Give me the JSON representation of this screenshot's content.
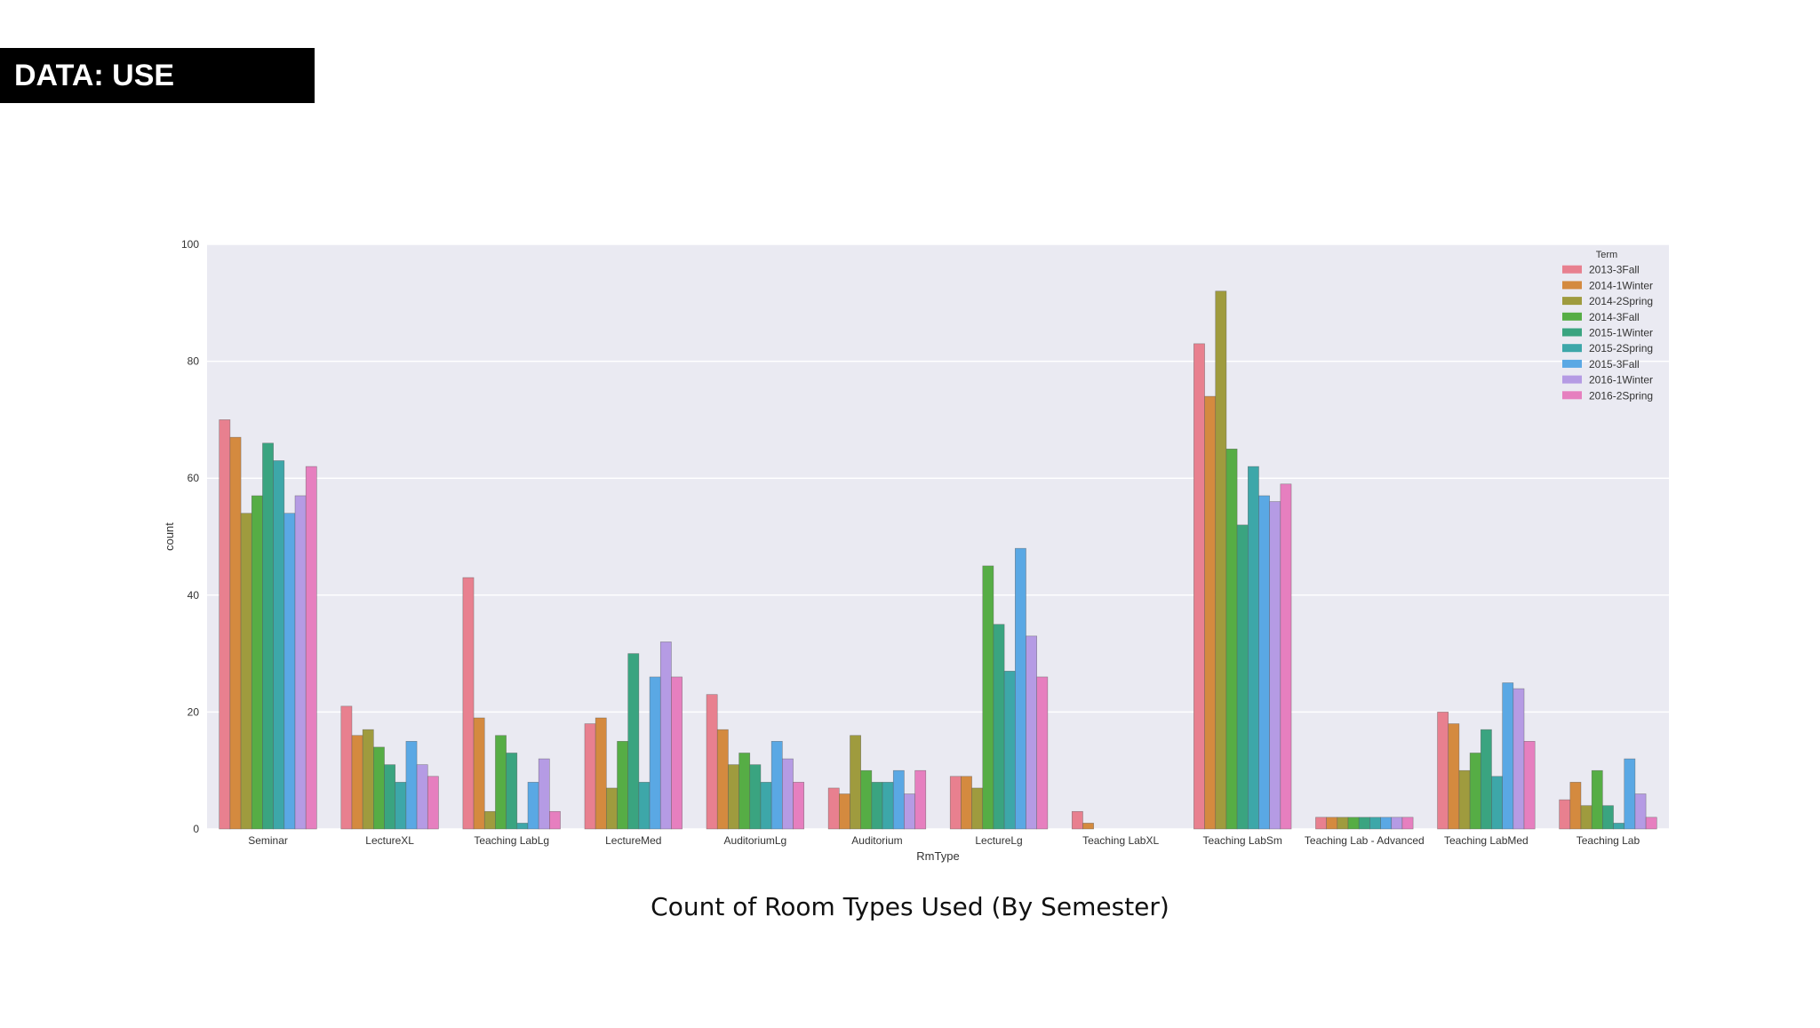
{
  "header": {
    "title": "DATA: USE"
  },
  "caption": "Count of Room Types Used (By Semester)",
  "chart_data": {
    "type": "bar",
    "title": "",
    "xlabel": "RmType",
    "ylabel": "count",
    "ylim": [
      0,
      100
    ],
    "yticks": [
      0,
      20,
      40,
      60,
      80,
      100
    ],
    "grid": true,
    "legend_title": "Term",
    "legend_position": "top-right",
    "categories": [
      "Seminar",
      "LectureXL",
      "Teaching LabLg",
      "LectureMed",
      "AuditoriumLg",
      "Auditorium",
      "LectureLg",
      "Teaching LabXL",
      "Teaching LabSm",
      "Teaching Lab - Advanced",
      "Teaching LabMed",
      "Teaching Lab"
    ],
    "series": [
      {
        "name": "2013-3Fall",
        "color": "#e8808f",
        "values": [
          70,
          21,
          43,
          18,
          23,
          7,
          9,
          3,
          83,
          2,
          20,
          5
        ]
      },
      {
        "name": "2014-1Winter",
        "color": "#d48a3f",
        "values": [
          67,
          16,
          19,
          19,
          17,
          6,
          9,
          1,
          74,
          2,
          18,
          8
        ]
      },
      {
        "name": "2014-2Spring",
        "color": "#9f9b3e",
        "values": [
          54,
          17,
          3,
          7,
          11,
          16,
          7,
          0,
          92,
          2,
          10,
          4
        ]
      },
      {
        "name": "2014-3Fall",
        "color": "#56ad45",
        "values": [
          57,
          14,
          16,
          15,
          13,
          10,
          45,
          0,
          65,
          2,
          13,
          10
        ]
      },
      {
        "name": "2015-1Winter",
        "color": "#3aa480",
        "values": [
          66,
          11,
          13,
          30,
          11,
          8,
          35,
          0,
          52,
          2,
          17,
          4
        ]
      },
      {
        "name": "2015-2Spring",
        "color": "#3da7a9",
        "values": [
          63,
          8,
          1,
          8,
          8,
          8,
          27,
          0,
          62,
          2,
          9,
          1
        ]
      },
      {
        "name": "2015-3Fall",
        "color": "#5aa8e4",
        "values": [
          54,
          15,
          8,
          26,
          15,
          10,
          48,
          0,
          57,
          2,
          25,
          12
        ]
      },
      {
        "name": "2016-1Winter",
        "color": "#b59be4",
        "values": [
          57,
          11,
          12,
          32,
          12,
          6,
          33,
          0,
          56,
          2,
          24,
          6
        ]
      },
      {
        "name": "2016-2Spring",
        "color": "#e67fbf",
        "values": [
          62,
          9,
          3,
          26,
          8,
          10,
          26,
          0,
          59,
          2,
          15,
          2
        ]
      }
    ]
  }
}
